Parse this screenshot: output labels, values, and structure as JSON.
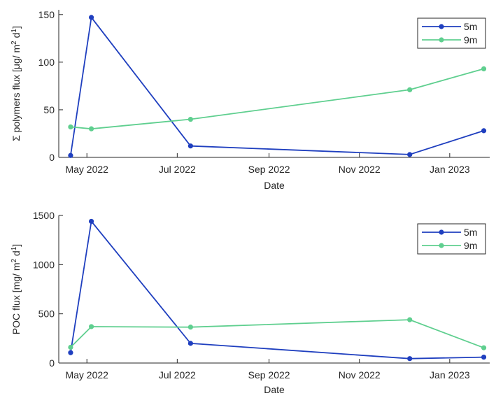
{
  "chart_data": [
    {
      "type": "line",
      "ylabel": "Σ polymers flux [μg/ m",
      "ylabel_sup1": "2",
      "ylabel_mid": " d",
      "ylabel_sup2": "1",
      "ylabel_end": "]",
      "xlabel": "Date",
      "xticks": [
        "May 2022",
        "Jul 2022",
        "Sep 2022",
        "Nov 2022",
        "Jan 2023"
      ],
      "xtick_dates": [
        "2022-05-01",
        "2022-07-01",
        "2022-09-01",
        "2022-11-01",
        "2023-01-01"
      ],
      "xlim": [
        "2022-04-12",
        "2023-01-28"
      ],
      "ylim": [
        0,
        155
      ],
      "yticks": [
        0,
        50,
        100,
        150
      ],
      "grid": false,
      "legend": "top-right",
      "series": [
        {
          "name": "5m",
          "color": "#1f3fbf",
          "points": [
            {
              "x": "2022-04-20",
              "y": 2
            },
            {
              "x": "2022-05-04",
              "y": 147
            },
            {
              "x": "2022-07-10",
              "y": 12
            },
            {
              "x": "2022-12-05",
              "y": 3
            },
            {
              "x": "2023-01-24",
              "y": 28
            }
          ]
        },
        {
          "name": "9m",
          "color": "#5fcf8f",
          "points": [
            {
              "x": "2022-04-20",
              "y": 32
            },
            {
              "x": "2022-05-04",
              "y": 30
            },
            {
              "x": "2022-07-10",
              "y": 40
            },
            {
              "x": "2022-12-05",
              "y": 71
            },
            {
              "x": "2023-01-24",
              "y": 93
            }
          ]
        }
      ]
    },
    {
      "type": "line",
      "ylabel": "POC flux [mg/ m",
      "ylabel_sup1": "2",
      "ylabel_mid": " d",
      "ylabel_sup2": "1",
      "ylabel_end": "]",
      "xlabel": "Date",
      "xticks": [
        "May 2022",
        "Jul 2022",
        "Sep 2022",
        "Nov 2022",
        "Jan 2023"
      ],
      "xtick_dates": [
        "2022-05-01",
        "2022-07-01",
        "2022-09-01",
        "2022-11-01",
        "2023-01-01"
      ],
      "xlim": [
        "2022-04-12",
        "2023-01-28"
      ],
      "ylim": [
        0,
        1500
      ],
      "yticks": [
        0,
        500,
        1000,
        1500
      ],
      "grid": false,
      "legend": "top-right",
      "series": [
        {
          "name": "5m",
          "color": "#1f3fbf",
          "points": [
            {
              "x": "2022-04-20",
              "y": 105
            },
            {
              "x": "2022-05-04",
              "y": 1440
            },
            {
              "x": "2022-07-10",
              "y": 200
            },
            {
              "x": "2022-12-05",
              "y": 45
            },
            {
              "x": "2023-01-24",
              "y": 60
            }
          ]
        },
        {
          "name": "9m",
          "color": "#5fcf8f",
          "points": [
            {
              "x": "2022-04-20",
              "y": 160
            },
            {
              "x": "2022-05-04",
              "y": 370
            },
            {
              "x": "2022-07-10",
              "y": 365
            },
            {
              "x": "2022-12-05",
              "y": 440
            },
            {
              "x": "2023-01-24",
              "y": 155
            }
          ]
        }
      ]
    }
  ]
}
